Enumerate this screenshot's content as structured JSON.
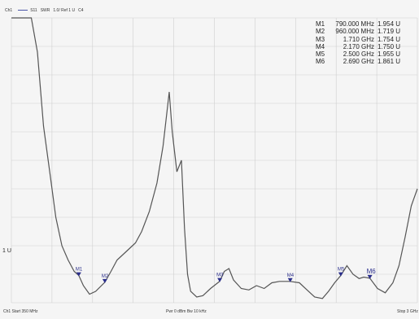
{
  "header": {
    "trace": "Ch1",
    "param": "S11",
    "format": "SWR",
    "scale": "1.0/ Ref 1 U",
    "channel": "C4"
  },
  "footer": {
    "left": "Ch1 Start 350 MHz",
    "middle": "Pwr 0 dBm Bw 10 kHz",
    "right": "Stop 3 GHz"
  },
  "ref_label": "1 U",
  "colors": {
    "trace": "#555555",
    "grid": "#cfcfcf",
    "marker": "#2b2f8c"
  },
  "markers": [
    {
      "label": "M1",
      "freq": "790.000 MHz",
      "value": "1.954 U"
    },
    {
      "label": "M2",
      "freq": "960.000 MHz",
      "value": "1.719 U"
    },
    {
      "label": "M3",
      "freq": "1.710 GHz",
      "value": "1.754 U"
    },
    {
      "label": "M4",
      "freq": "2.170 GHz",
      "value": "1.750 U"
    },
    {
      "label": "M5",
      "freq": "2.500 GHz",
      "value": "1.955 U"
    },
    {
      "label": "M6",
      "freq": "2.690 GHz",
      "value": "1.861 U"
    }
  ],
  "chart_data": {
    "type": "line",
    "xlabel": "",
    "ylabel": "",
    "xlim": [
      350,
      3000
    ],
    "ylim": [
      1,
      11
    ],
    "grid": true,
    "x": [
      350,
      480,
      520,
      560,
      600,
      640,
      680,
      720,
      760,
      790,
      820,
      860,
      900,
      960,
      1000,
      1040,
      1080,
      1120,
      1160,
      1200,
      1250,
      1300,
      1340,
      1380,
      1400,
      1430,
      1460,
      1480,
      1500,
      1520,
      1560,
      1600,
      1650,
      1710,
      1740,
      1770,
      1800,
      1850,
      1900,
      1950,
      2000,
      2050,
      2100,
      2170,
      2230,
      2280,
      2330,
      2380,
      2420,
      2460,
      2500,
      2540,
      2580,
      2620,
      2650,
      2690,
      2740,
      2790,
      2840,
      2880,
      2920,
      2960,
      3000
    ],
    "values": [
      11,
      11,
      9.8,
      7.2,
      5.6,
      4.0,
      3.0,
      2.5,
      2.1,
      1.954,
      1.6,
      1.3,
      1.4,
      1.719,
      2.1,
      2.5,
      2.7,
      2.9,
      3.1,
      3.5,
      4.2,
      5.2,
      6.5,
      8.4,
      7.0,
      5.6,
      6.0,
      3.6,
      2.0,
      1.4,
      1.2,
      1.25,
      1.5,
      1.754,
      2.1,
      2.2,
      1.8,
      1.5,
      1.45,
      1.6,
      1.5,
      1.7,
      1.75,
      1.75,
      1.7,
      1.45,
      1.2,
      1.15,
      1.4,
      1.7,
      1.955,
      2.3,
      2.0,
      1.85,
      1.9,
      1.861,
      1.5,
      1.35,
      1.7,
      2.3,
      3.3,
      4.4,
      5.0
    ]
  }
}
